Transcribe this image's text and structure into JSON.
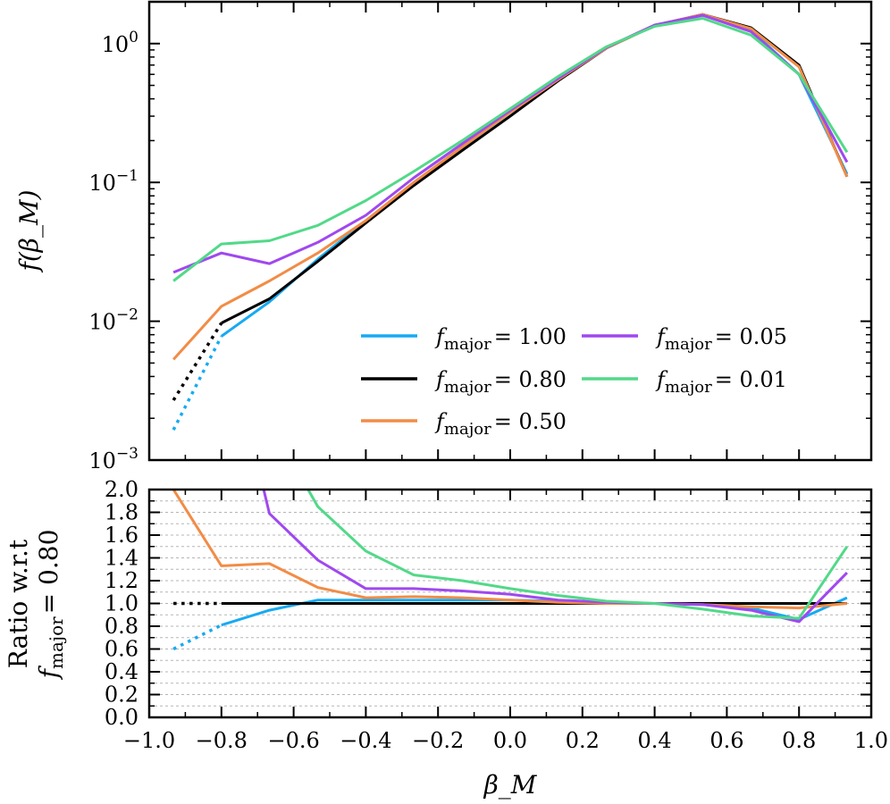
{
  "chart_data": [
    {
      "type": "line",
      "panel": "top",
      "ylabel": "f(β_M)",
      "yscale": "log",
      "ylim": [
        0.001,
        2.0
      ],
      "xlim": [
        -1.0,
        1.0
      ],
      "x_tick_labels_shown": false,
      "y_ticks": [
        {
          "base": "10",
          "exp": "−3",
          "value": 0.001
        },
        {
          "base": "10",
          "exp": "−2",
          "value": 0.01
        },
        {
          "base": "10",
          "exp": "−1",
          "value": 0.1
        },
        {
          "base": "10",
          "exp": "0",
          "value": 1.0
        }
      ],
      "legend": {
        "location": "lower-right",
        "columns": 2
      },
      "series": [
        {
          "name": "f_major = 1.00",
          "legend_fn": "f",
          "legend_sub": "major",
          "legend_val": "= 1.00",
          "color": "#17aaf2",
          "x": [
            -0.8,
            -0.667,
            -0.533,
            -0.4,
            -0.267,
            -0.133,
            0.0,
            0.133,
            0.267,
            0.4,
            0.533,
            0.667,
            0.8,
            0.933
          ],
          "y": [
            0.0078,
            0.0138,
            0.028,
            0.053,
            0.1,
            0.18,
            0.32,
            0.56,
            0.93,
            1.35,
            1.6,
            1.25,
            0.6,
            0.115
          ],
          "dotted_x": [
            -0.933,
            -0.8
          ],
          "dotted_y": [
            0.00165,
            0.0078
          ]
        },
        {
          "name": "f_major = 0.80",
          "legend_fn": "f",
          "legend_sub": "major",
          "legend_val": "= 0.80",
          "color": "#000000",
          "x": [
            -0.8,
            -0.667,
            -0.533,
            -0.4,
            -0.267,
            -0.133,
            0.0,
            0.133,
            0.267,
            0.4,
            0.533,
            0.667,
            0.8,
            0.933
          ],
          "y": [
            0.0097,
            0.0145,
            0.027,
            0.051,
            0.095,
            0.17,
            0.3,
            0.54,
            0.93,
            1.35,
            1.62,
            1.3,
            0.7,
            0.11
          ],
          "dotted_x": [
            -0.933,
            -0.8
          ],
          "dotted_y": [
            0.0027,
            0.0097
          ]
        },
        {
          "name": "f_major = 0.50",
          "legend_fn": "f",
          "legend_sub": "major",
          "legend_val": "= 0.50",
          "color": "#f28c46",
          "x": [
            -0.933,
            -0.8,
            -0.667,
            -0.533,
            -0.4,
            -0.267,
            -0.133,
            0.0,
            0.133,
            0.267,
            0.4,
            0.533,
            0.667,
            0.8,
            0.933
          ],
          "y": [
            0.0053,
            0.0128,
            0.0195,
            0.031,
            0.053,
            0.1,
            0.18,
            0.32,
            0.55,
            0.93,
            1.35,
            1.62,
            1.28,
            0.68,
            0.11
          ]
        },
        {
          "name": "f_major = 0.05",
          "legend_fn": "f",
          "legend_sub": "major",
          "legend_val": "= 0.05",
          "color": "#a048ef",
          "x": [
            -0.933,
            -0.8,
            -0.667,
            -0.533,
            -0.4,
            -0.267,
            -0.133,
            0.0,
            0.133,
            0.267,
            0.4,
            0.533,
            0.667,
            0.8,
            0.933
          ],
          "y": [
            0.0225,
            0.031,
            0.026,
            0.037,
            0.058,
            0.108,
            0.19,
            0.33,
            0.56,
            0.94,
            1.36,
            1.6,
            1.22,
            0.6,
            0.14
          ]
        },
        {
          "name": "f_major = 0.01",
          "legend_fn": "f",
          "legend_sub": "major",
          "legend_val": "= 0.01",
          "color": "#52d989",
          "x": [
            -0.933,
            -0.8,
            -0.667,
            -0.533,
            -0.4,
            -0.267,
            -0.133,
            0.0,
            0.133,
            0.267,
            0.4,
            0.533,
            0.667,
            0.8,
            0.933
          ],
          "y": [
            0.0195,
            0.036,
            0.038,
            0.049,
            0.074,
            0.12,
            0.2,
            0.34,
            0.58,
            0.95,
            1.33,
            1.52,
            1.15,
            0.6,
            0.165
          ]
        }
      ]
    },
    {
      "type": "line",
      "panel": "bottom",
      "xlabel": "β_M",
      "ylabel_line1": "Ratio w.r.t",
      "ylabel_line2_fn": "f",
      "ylabel_line2_sub": "major",
      "ylabel_line2_val": "= 0.80",
      "xlim": [
        -1.0,
        1.0
      ],
      "ylim": [
        0.0,
        2.0
      ],
      "grid": "horizontal dashed",
      "x_ticks": [
        "−1.0",
        "−0.8",
        "−0.6",
        "−0.4",
        "−0.2",
        "0.0",
        "0.2",
        "0.4",
        "0.6",
        "0.8",
        "1.0"
      ],
      "y_ticks": [
        "0.0",
        "0.2",
        "0.4",
        "0.6",
        "0.8",
        "1.0",
        "1.2",
        "1.4",
        "1.6",
        "1.8",
        "2.0"
      ],
      "series": [
        {
          "color": "#17aaf2",
          "x": [
            -0.8,
            -0.667,
            -0.533,
            -0.4,
            -0.267,
            -0.133,
            0.0,
            0.133,
            0.267,
            0.4,
            0.533,
            0.667,
            0.8,
            0.933
          ],
          "y": [
            0.81,
            0.94,
            1.03,
            1.03,
            1.03,
            1.03,
            1.03,
            1.02,
            1.0,
            1.0,
            0.99,
            0.96,
            0.86,
            1.05
          ],
          "dotted_x": [
            -0.933,
            -0.8
          ],
          "dotted_y": [
            0.6,
            0.81
          ]
        },
        {
          "color": "#000000",
          "x": [
            -0.8,
            -0.667,
            -0.533,
            -0.4,
            -0.267,
            -0.133,
            0.0,
            0.133,
            0.267,
            0.4,
            0.533,
            0.667,
            0.8,
            0.933
          ],
          "y": [
            1.0,
            1.0,
            1.0,
            1.0,
            1.0,
            1.0,
            1.0,
            1.0,
            1.0,
            1.0,
            1.0,
            1.0,
            1.0,
            1.0
          ],
          "dotted_x": [
            -0.933,
            -0.8
          ],
          "dotted_y": [
            1.0,
            1.0
          ]
        },
        {
          "color": "#f28c46",
          "x": [
            -0.933,
            -0.8,
            -0.667,
            -0.533,
            -0.4,
            -0.267,
            -0.133,
            0.0,
            0.133,
            0.267,
            0.4,
            0.533,
            0.667,
            0.8,
            0.933
          ],
          "y": [
            2.0,
            1.33,
            1.35,
            1.14,
            1.05,
            1.06,
            1.05,
            1.03,
            1.01,
            1.0,
            1.0,
            0.99,
            0.97,
            0.96,
            1.0
          ]
        },
        {
          "color": "#a048ef",
          "x": [
            -0.667,
            -0.533,
            -0.4,
            -0.267,
            -0.133,
            0.0,
            0.133,
            0.267,
            0.4,
            0.533,
            0.667,
            0.8,
            0.933
          ],
          "y": [
            1.79,
            1.38,
            1.13,
            1.13,
            1.11,
            1.08,
            1.03,
            1.01,
            1.0,
            0.99,
            0.94,
            0.84,
            1.27
          ],
          "entry": {
            "x": -0.683,
            "y": 2.0
          }
        },
        {
          "color": "#52d989",
          "x": [
            -0.533,
            -0.4,
            -0.267,
            -0.133,
            0.0,
            0.133,
            0.267,
            0.4,
            0.533,
            0.667,
            0.8,
            0.933
          ],
          "y": [
            1.85,
            1.46,
            1.25,
            1.2,
            1.13,
            1.07,
            1.02,
            1.0,
            0.95,
            0.89,
            0.87,
            1.5
          ],
          "entry": {
            "x": -0.56,
            "y": 2.0
          }
        }
      ]
    }
  ]
}
